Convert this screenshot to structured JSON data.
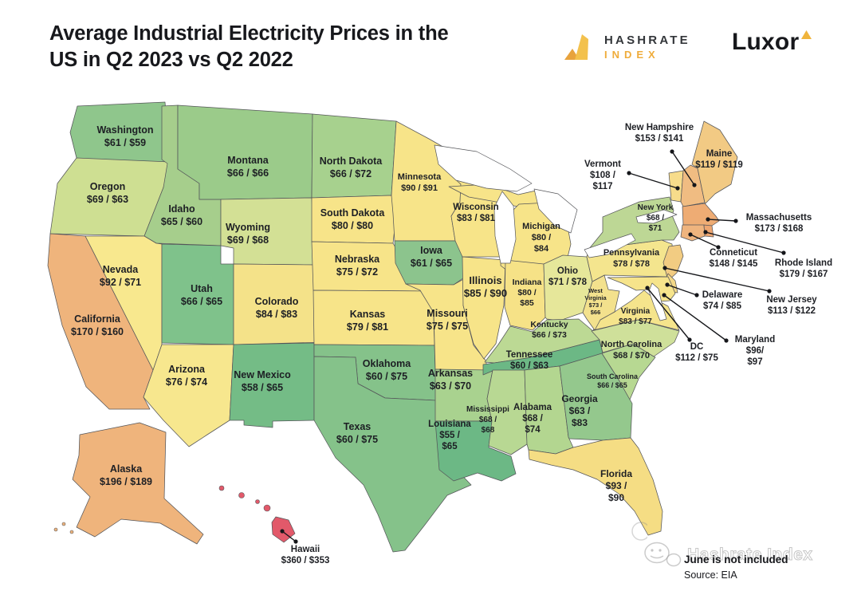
{
  "title": {
    "line1": "Average Industrial Electricity Prices in the",
    "line2": "US in Q2 2023 vs Q2 2022"
  },
  "logos": {
    "hashrate": {
      "line1": "HASHRATE",
      "line2": "INDEX"
    },
    "luxor": "Luxor"
  },
  "footer": {
    "note": "June is not included",
    "source": "Source: EIA",
    "watermark": "Hashrate Index"
  },
  "colors": {
    "accent_gold": "#efac3b",
    "text_dark": "#17181c",
    "map_border": "#55565a",
    "leader_line": "#15161a"
  },
  "chart_data": {
    "type": "choropleth_map",
    "title": "Average Industrial Electricity Prices in the US in Q2 2023 vs Q2 2022",
    "value_format": "Q2 2023 price / Q2 2022 price (USD)",
    "source": "EIA",
    "note": "June is not included",
    "series": [
      {
        "abbr": "WA",
        "name": "Washington",
        "q2_2023": 61,
        "q2_2022": 59,
        "label_lines": [
          "$61 / $59"
        ],
        "color": "#8fc68c"
      },
      {
        "abbr": "OR",
        "name": "Oregon",
        "q2_2023": 69,
        "q2_2022": 63,
        "label_lines": [
          "$69 / $63"
        ],
        "color": "#cedf92"
      },
      {
        "abbr": "CA",
        "name": "California",
        "q2_2023": 170,
        "q2_2022": 160,
        "label_lines": [
          "$170 / $160"
        ],
        "color": "#efb47c"
      },
      {
        "abbr": "ID",
        "name": "Idaho",
        "q2_2023": 65,
        "q2_2022": 60,
        "label_lines": [
          "$65 / $60"
        ],
        "color": "#a6ce8c"
      },
      {
        "abbr": "NV",
        "name": "Nevada",
        "q2_2023": 92,
        "q2_2022": 71,
        "label_lines": [
          "$92 / $71"
        ],
        "color": "#f8e88e"
      },
      {
        "abbr": "UT",
        "name": "Utah",
        "q2_2023": 66,
        "q2_2022": 65,
        "label_lines": [
          "$66 / $65"
        ],
        "color": "#7fc28b"
      },
      {
        "abbr": "AZ",
        "name": "Arizona",
        "q2_2023": 76,
        "q2_2022": 74,
        "label_lines": [
          "$76 / $74"
        ],
        "color": "#f7e78e"
      },
      {
        "abbr": "MT",
        "name": "Montana",
        "q2_2023": 66,
        "q2_2022": 66,
        "label_lines": [
          "$66 / $66"
        ],
        "color": "#9bcb8a"
      },
      {
        "abbr": "WY",
        "name": "Wyoming",
        "q2_2023": 69,
        "q2_2022": 68,
        "label_lines": [
          "$69 / $68"
        ],
        "color": "#d3e095"
      },
      {
        "abbr": "CO",
        "name": "Colorado",
        "q2_2023": 84,
        "q2_2022": 83,
        "label_lines": [
          "$84 / $83"
        ],
        "color": "#f4e289"
      },
      {
        "abbr": "NM",
        "name": "New Mexico",
        "q2_2023": 58,
        "q2_2022": 65,
        "label_lines": [
          "$58 / $65"
        ],
        "color": "#74bc86"
      },
      {
        "abbr": "ND",
        "name": "North Dakota",
        "q2_2023": 66,
        "q2_2022": 72,
        "label_lines": [
          "$66 / $72"
        ],
        "color": "#a7d18e"
      },
      {
        "abbr": "SD",
        "name": "South Dakota",
        "q2_2023": 80,
        "q2_2022": 80,
        "label_lines": [
          "$80 / $80"
        ],
        "color": "#f7e489"
      },
      {
        "abbr": "NE",
        "name": "Nebraska",
        "q2_2023": 75,
        "q2_2022": 72,
        "label_lines": [
          "$75 / $72"
        ],
        "color": "#f7e489"
      },
      {
        "abbr": "KS",
        "name": "Kansas",
        "q2_2023": 79,
        "q2_2022": 81,
        "label_lines": [
          "$79 / $81"
        ],
        "color": "#f7e489"
      },
      {
        "abbr": "OK",
        "name": "Oklahoma",
        "q2_2023": 60,
        "q2_2022": 75,
        "label_lines": [
          "$60 / $75"
        ],
        "color": "#85c28a"
      },
      {
        "abbr": "TX",
        "name": "Texas",
        "q2_2023": 60,
        "q2_2022": 75,
        "label_lines": [
          "$60 / $75"
        ],
        "color": "#85c28a"
      },
      {
        "abbr": "MN",
        "name": "Minnesota",
        "q2_2023": 90,
        "q2_2022": 91,
        "label_lines": [
          "$90 / $91"
        ],
        "color": "#f7e489"
      },
      {
        "abbr": "IA",
        "name": "Iowa",
        "q2_2023": 61,
        "q2_2022": 65,
        "label_lines": [
          "$61 / $65"
        ],
        "color": "#8cc48d"
      },
      {
        "abbr": "MO",
        "name": "Missouri",
        "q2_2023": 75,
        "q2_2022": 75,
        "label_lines": [
          "$75 / $75"
        ],
        "color": "#f7e489"
      },
      {
        "abbr": "AR",
        "name": "Arkansas",
        "q2_2023": 63,
        "q2_2022": 70,
        "label_lines": [
          "$63 / $70"
        ],
        "color": "#a9d28f"
      },
      {
        "abbr": "LA",
        "name": "Louisiana",
        "q2_2023": 55,
        "q2_2022": 65,
        "label_lines": [
          "$55 /",
          "$65"
        ],
        "color": "#6cb885"
      },
      {
        "abbr": "WI",
        "name": "Wisconsin",
        "q2_2023": 83,
        "q2_2022": 81,
        "label_lines": [
          "$83 / $81"
        ],
        "color": "#f7e489"
      },
      {
        "abbr": "IL",
        "name": "Illinois",
        "q2_2023": 85,
        "q2_2022": 90,
        "label_lines": [
          "$85 / $90"
        ],
        "color": "#f7e489"
      },
      {
        "abbr": "MI",
        "name": "Michigan",
        "q2_2023": 80,
        "q2_2022": 84,
        "label_lines": [
          "$80 /",
          "$84"
        ],
        "color": "#f7e489"
      },
      {
        "abbr": "IN",
        "name": "Indiana",
        "q2_2023": 80,
        "q2_2022": 85,
        "label_lines": [
          "$80 /",
          "$85"
        ],
        "color": "#f6e287"
      },
      {
        "abbr": "OH",
        "name": "Ohio",
        "q2_2023": 71,
        "q2_2022": 78,
        "label_lines": [
          "$71 / $78"
        ],
        "color": "#e6e79a"
      },
      {
        "abbr": "KY",
        "name": "Kentucky",
        "q2_2023": 66,
        "q2_2022": 73,
        "label_lines": [
          "$66 / $73"
        ],
        "color": "#bcd994"
      },
      {
        "abbr": "TN",
        "name": "Tennessee",
        "q2_2023": 60,
        "q2_2022": 63,
        "label_lines": [
          "$60 / $63"
        ],
        "color": "#6cb885"
      },
      {
        "abbr": "MS",
        "name": "Mississippi",
        "q2_2023": 68,
        "q2_2022": 68,
        "label_lines": [
          "$68 /",
          "$68"
        ],
        "color": "#b8d893"
      },
      {
        "abbr": "AL",
        "name": "Alabama",
        "q2_2023": 68,
        "q2_2022": 74,
        "label_lines": [
          "$68 /",
          "$74"
        ],
        "color": "#b3d690"
      },
      {
        "abbr": "GA",
        "name": "Georgia",
        "q2_2023": 63,
        "q2_2022": 83,
        "label_lines": [
          "$63 /",
          "$83"
        ],
        "color": "#94c88d"
      },
      {
        "abbr": "SC",
        "name": "South Carolina",
        "q2_2023": 66,
        "q2_2022": 65,
        "label_lines": [
          "$66 / $65"
        ],
        "color": "#b7d892"
      },
      {
        "abbr": "NC",
        "name": "North Carolina",
        "q2_2023": 68,
        "q2_2022": 70,
        "label_lines": [
          "$68 / $70"
        ],
        "color": "#cfe09a"
      },
      {
        "abbr": "FL",
        "name": "Florida",
        "q2_2023": 93,
        "q2_2022": 90,
        "label_lines": [
          "$93 /",
          "$90"
        ],
        "color": "#f5dd84"
      },
      {
        "abbr": "VA",
        "name": "Virginia",
        "q2_2023": 83,
        "q2_2022": 77,
        "label_lines": [
          "$83 / $77"
        ],
        "color": "#f5e48c"
      },
      {
        "abbr": "WV",
        "name": "West Virginia",
        "q2_2023": 73,
        "q2_2022": 66,
        "label_lines": [
          "$73 /",
          "$66"
        ],
        "color": "#f3e18d"
      },
      {
        "abbr": "PA",
        "name": "Pennsylvania",
        "q2_2023": 78,
        "q2_2022": 78,
        "label_lines": [
          "$78 / $78"
        ],
        "color": "#f4e58e"
      },
      {
        "abbr": "NY",
        "name": "New York",
        "q2_2023": 68,
        "q2_2022": 71,
        "label_lines": [
          "$68 /",
          "$71"
        ],
        "color": "#bdd795"
      },
      {
        "abbr": "VT",
        "name": "Vermont",
        "q2_2023": 108,
        "q2_2022": 117,
        "label_lines": [
          "$108 /",
          "$117"
        ],
        "color": "#f7dc8b"
      },
      {
        "abbr": "NH",
        "name": "New Hampshire",
        "q2_2023": 153,
        "q2_2022": 141,
        "label_lines": [
          "$153 / $141"
        ],
        "color": "#f0bc82"
      },
      {
        "abbr": "ME",
        "name": "Maine",
        "q2_2023": 119,
        "q2_2022": 119,
        "label_lines": [
          "$119 / $119"
        ],
        "color": "#f2ca84"
      },
      {
        "abbr": "MA",
        "name": "Massachusetts",
        "q2_2023": 173,
        "q2_2022": 168,
        "label_lines": [
          "$173 / $168"
        ],
        "color": "#eeac74"
      },
      {
        "abbr": "CT",
        "name": "Conneticut",
        "q2_2023": 148,
        "q2_2022": 145,
        "label_lines": [
          "$148 / $145"
        ],
        "color": "#efb47e"
      },
      {
        "abbr": "RI",
        "name": "Rhode Island",
        "q2_2023": 179,
        "q2_2022": 167,
        "label_lines": [
          "$179 / $167"
        ],
        "color": "#eda671"
      },
      {
        "abbr": "NJ",
        "name": "New Jersey",
        "q2_2023": 113,
        "q2_2022": 122,
        "label_lines": [
          "$113 / $122"
        ],
        "color": "#f2cc82"
      },
      {
        "abbr": "DE",
        "name": "Delaware",
        "q2_2023": 74,
        "q2_2022": 85,
        "label_lines": [
          "$74 / $85"
        ],
        "color": "#f3d887"
      },
      {
        "abbr": "MD",
        "name": "Maryland",
        "q2_2023": 96,
        "q2_2022": 97,
        "label_lines": [
          "$96/",
          "$97"
        ],
        "color": "#f6e48b"
      },
      {
        "abbr": "DC",
        "name": "DC",
        "q2_2023": 112,
        "q2_2022": 75,
        "label_lines": [
          "$112 / $75"
        ],
        "color": null
      },
      {
        "abbr": "AK",
        "name": "Alaska",
        "q2_2023": 196,
        "q2_2022": 189,
        "label_lines": [
          "$196 / $189"
        ],
        "color": "#efb47c"
      },
      {
        "abbr": "HI",
        "name": "Hawaii",
        "q2_2023": 360,
        "q2_2022": 353,
        "label_lines": [
          "$360 / $353"
        ],
        "color": "#e2596a"
      }
    ]
  }
}
